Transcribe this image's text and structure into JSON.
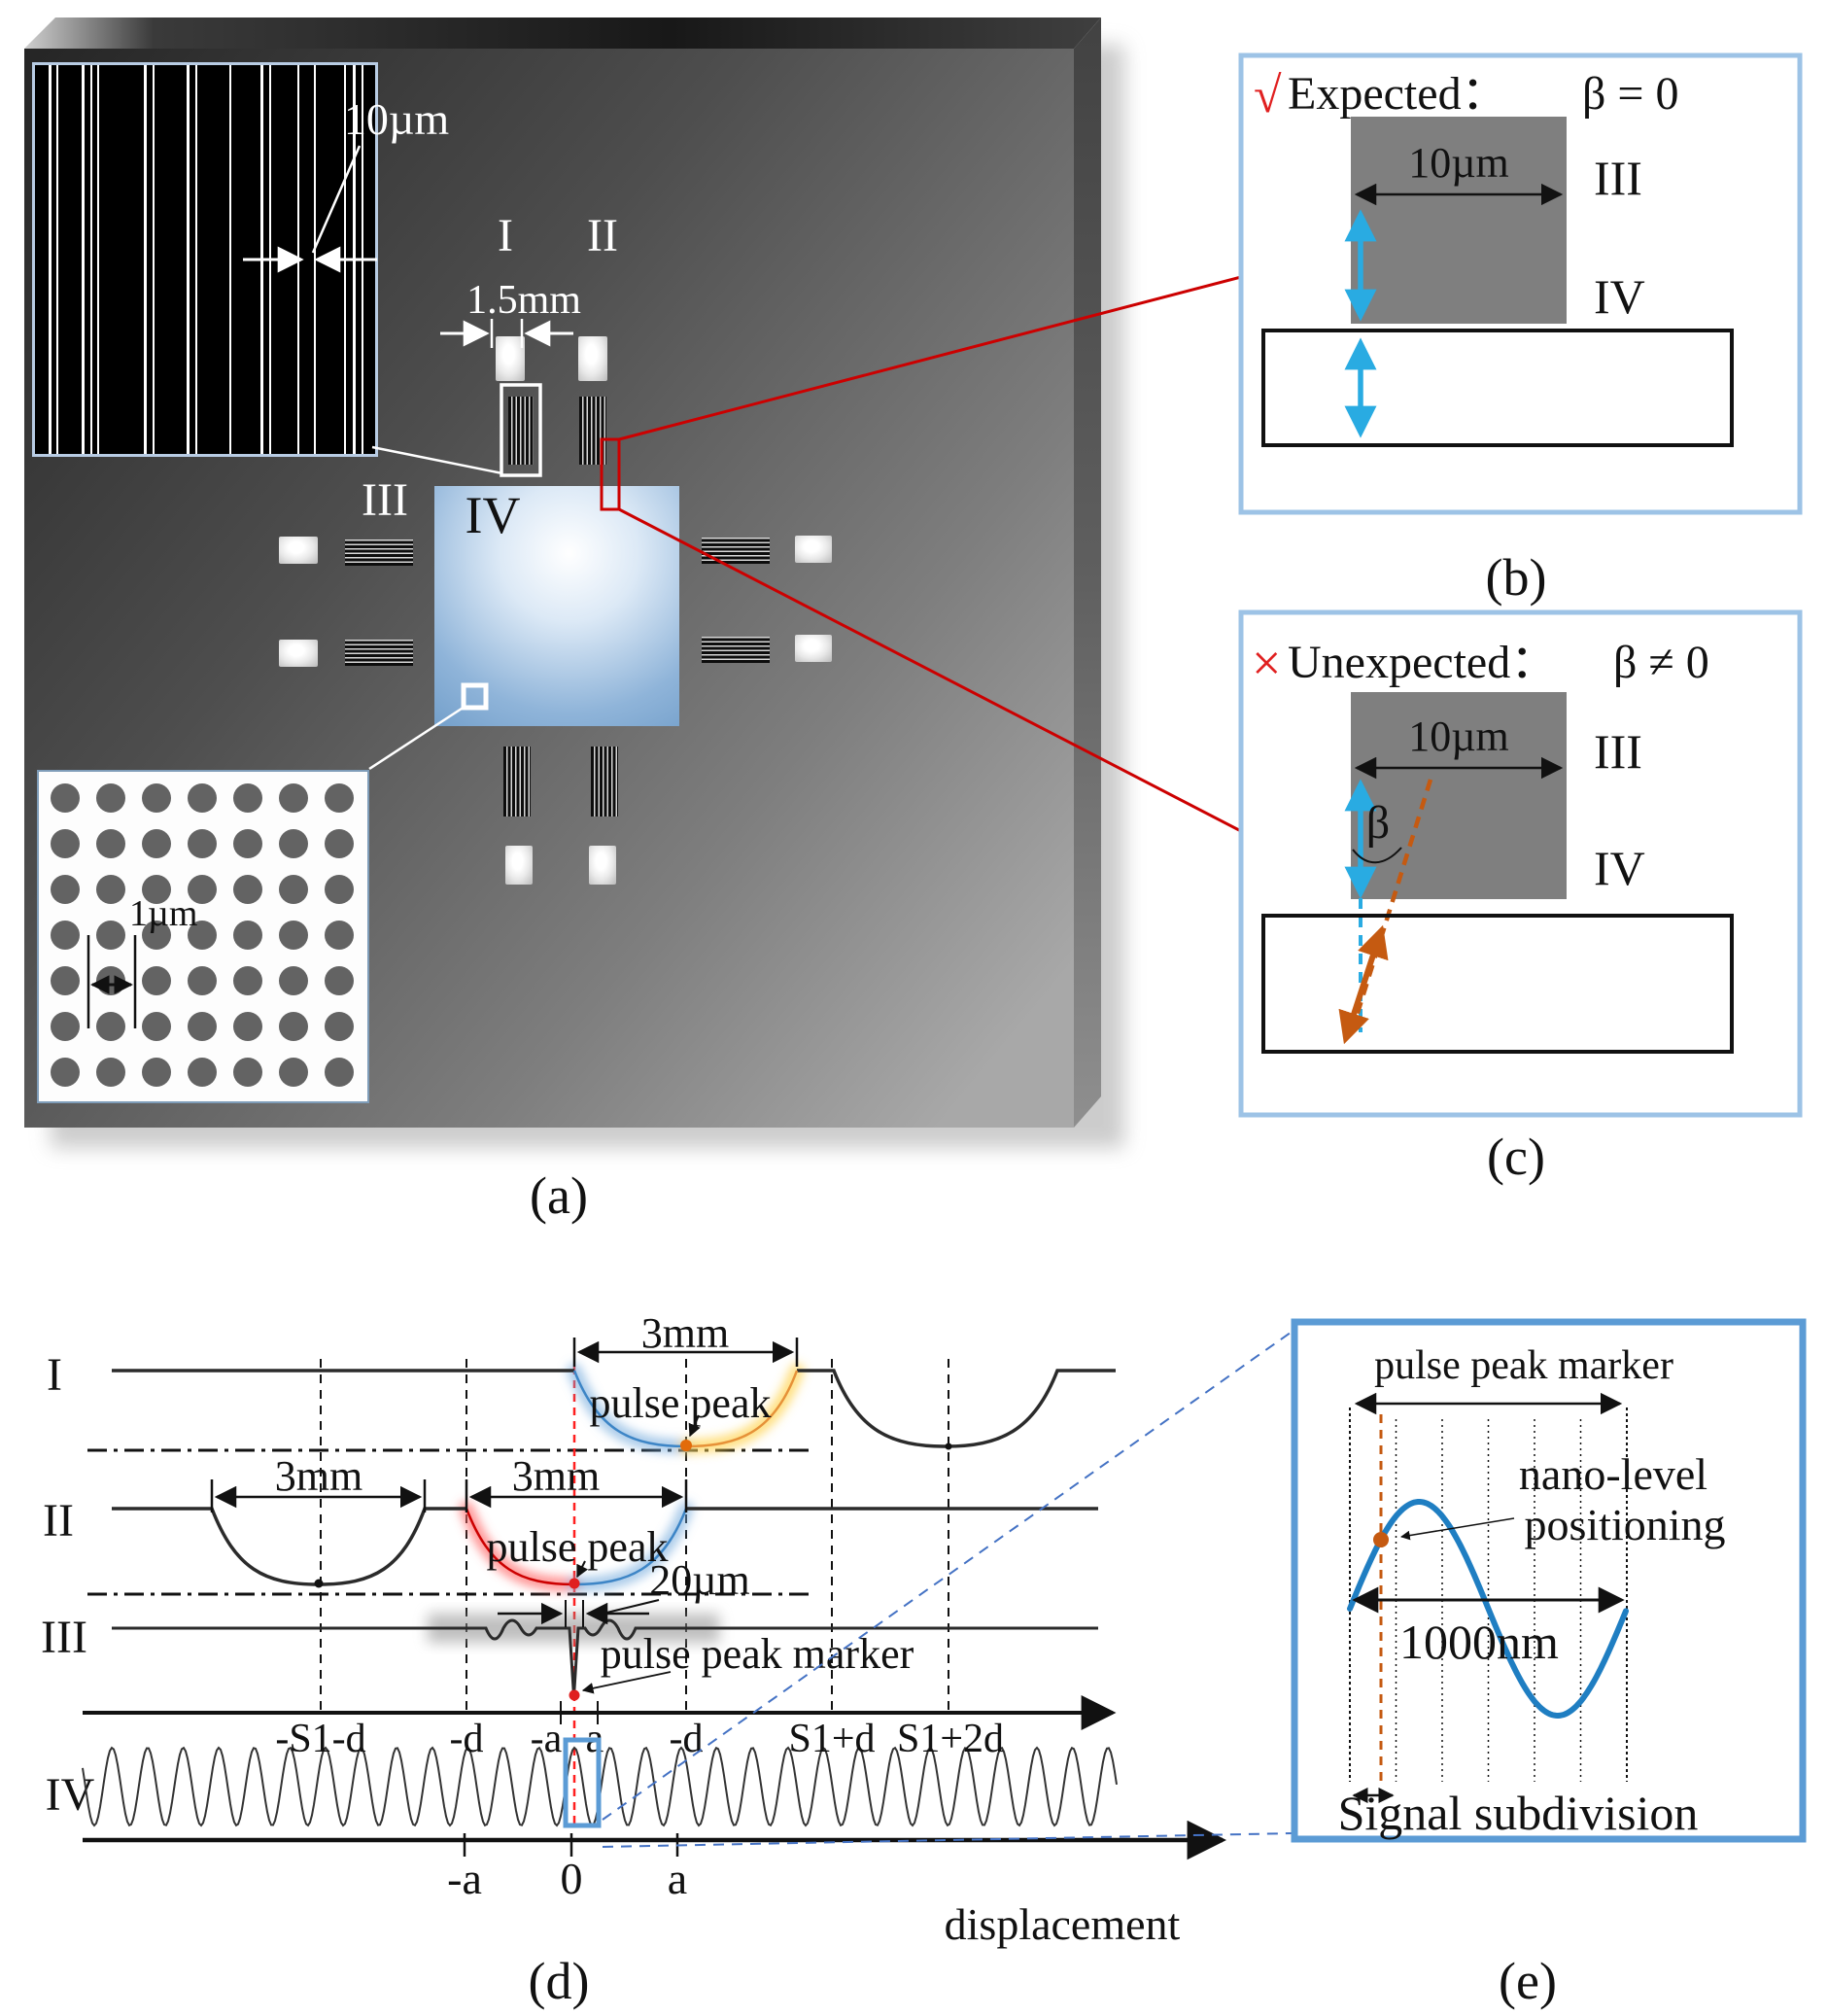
{
  "figure": {
    "panel_a": {
      "caption": "(a)",
      "grating_pitch_label": "10µm",
      "dot_pitch_label": "1µm",
      "track_gap_label": "1.5mm",
      "track_i": "I",
      "track_ii": "II",
      "track_iii": "III",
      "track_iv": "IV"
    },
    "panel_b": {
      "caption": "(b)",
      "check": "√",
      "title": "Expected：",
      "condition": "β = 0",
      "width_label": "10µm",
      "label_iii": "III",
      "label_iv": "IV"
    },
    "panel_c": {
      "caption": "(c)",
      "cross": "×",
      "title": "Unexpected：",
      "condition": "β ≠ 0",
      "width_label": "10µm",
      "label_iii": "III",
      "label_iv": "IV",
      "angle_label": "β"
    },
    "panel_d": {
      "caption": "(d)",
      "row_i": "I",
      "row_ii": "II",
      "row_iii": "III",
      "row_iv": "IV",
      "dim_i": "3mm",
      "dim_ii_left": "3mm",
      "dim_ii_right": "3mm",
      "dim_iii": "20µm",
      "pulse_peak_i": "pulse peak",
      "pulse_peak_ii": "pulse peak",
      "pulse_peak_marker": "pulse peak marker",
      "axis_top": [
        "-S1-d",
        "-d",
        "-a",
        "a",
        "-d",
        "S1+d",
        "S1+2d"
      ],
      "axis_bottom": [
        "-a",
        "0",
        "a"
      ],
      "x_axis_label": "displacement"
    },
    "panel_e": {
      "caption": "(e)",
      "marker_label": "pulse peak marker",
      "nano_line1": "nano-level",
      "nano_line2": "positioning",
      "period_label": "1000nm",
      "subdivision_label": "Signal subdivision"
    },
    "colors": {
      "accent_red": "#cc0000",
      "cyan": "#29abe2",
      "orange": "#c55a11",
      "wave_blue": "#1f7ec2",
      "panel_border": "#9dc3e6"
    }
  }
}
